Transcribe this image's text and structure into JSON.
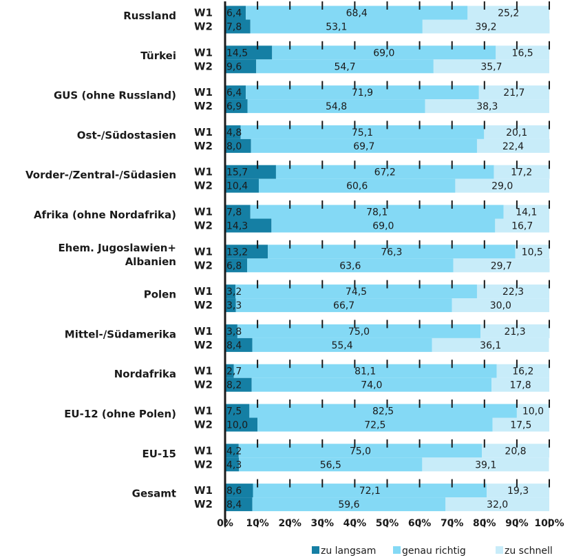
{
  "colors": {
    "slow": "#157fa4",
    "right": "#84d9f5",
    "fast": "#c8ecf9"
  },
  "chart_data": {
    "type": "bar",
    "orientation": "horizontal",
    "stacked": true,
    "xlim": [
      0,
      100
    ],
    "x_ticks": [
      "0%",
      "10%",
      "20%",
      "30%",
      "40%",
      "50%",
      "60%",
      "70%",
      "80%",
      "90%",
      "100%"
    ],
    "series": [
      {
        "name": "zu langsam",
        "color": "#157fa4"
      },
      {
        "name": "genau richtig",
        "color": "#84d9f5"
      },
      {
        "name": "zu schnell",
        "color": "#c8ecf9"
      }
    ],
    "legend_position": "bottom-right",
    "groups": [
      {
        "label": "Russland",
        "rows": [
          {
            "wave": "W1",
            "values": [
              6.4,
              68.4,
              25.2
            ],
            "labels": [
              "6,4",
              "68,4",
              "25,2"
            ]
          },
          {
            "wave": "W2",
            "values": [
              7.8,
              53.1,
              39.2
            ],
            "labels": [
              "7,8",
              "53,1",
              "39,2"
            ]
          }
        ]
      },
      {
        "label": "Türkei",
        "rows": [
          {
            "wave": "W1",
            "values": [
              14.5,
              69.0,
              16.5
            ],
            "labels": [
              "14,5",
              "69,0",
              "16,5"
            ]
          },
          {
            "wave": "W2",
            "values": [
              9.6,
              54.7,
              35.7
            ],
            "labels": [
              "9,6",
              "54,7",
              "35,7"
            ]
          }
        ]
      },
      {
        "label": "GUS (ohne Russland)",
        "rows": [
          {
            "wave": "W1",
            "values": [
              6.4,
              71.9,
              21.7
            ],
            "labels": [
              "6,4",
              "71,9",
              "21,7"
            ]
          },
          {
            "wave": "W2",
            "values": [
              6.9,
              54.8,
              38.3
            ],
            "labels": [
              "6,9",
              "54,8",
              "38,3"
            ]
          }
        ]
      },
      {
        "label": "Ost-/Südostasien",
        "rows": [
          {
            "wave": "W1",
            "values": [
              4.8,
              75.1,
              20.1
            ],
            "labels": [
              "4,8",
              "75,1",
              "20,1"
            ]
          },
          {
            "wave": "W2",
            "values": [
              8.0,
              69.7,
              22.4
            ],
            "labels": [
              "8,0",
              "69,7",
              "22,4"
            ]
          }
        ]
      },
      {
        "label": "Vorder-/Zentral-/Südasien",
        "rows": [
          {
            "wave": "W1",
            "values": [
              15.7,
              67.2,
              17.2
            ],
            "labels": [
              "15,7",
              "67,2",
              "17,2"
            ]
          },
          {
            "wave": "W2",
            "values": [
              10.4,
              60.6,
              29.0
            ],
            "labels": [
              "10,4",
              "60,6",
              "29,0"
            ]
          }
        ]
      },
      {
        "label": "Afrika (ohne Nordafrika)",
        "rows": [
          {
            "wave": "W1",
            "values": [
              7.8,
              78.1,
              14.1
            ],
            "labels": [
              "7,8",
              "78,1",
              "14,1"
            ]
          },
          {
            "wave": "W2",
            "values": [
              14.3,
              69.0,
              16.7
            ],
            "labels": [
              "14,3",
              "69,0",
              "16,7"
            ]
          }
        ]
      },
      {
        "label": "Ehem. Jugoslawien+\nAlbanien",
        "rows": [
          {
            "wave": "W1",
            "values": [
              13.2,
              76.3,
              10.5
            ],
            "labels": [
              "13,2",
              "76,3",
              "10,5"
            ]
          },
          {
            "wave": "W2",
            "values": [
              6.8,
              63.6,
              29.7
            ],
            "labels": [
              "6,8",
              "63,6",
              "29,7"
            ]
          }
        ]
      },
      {
        "label": "Polen",
        "rows": [
          {
            "wave": "W1",
            "values": [
              3.2,
              74.5,
              22.3
            ],
            "labels": [
              "3,2",
              "74,5",
              "22,3"
            ]
          },
          {
            "wave": "W2",
            "values": [
              3.3,
              66.7,
              30.0
            ],
            "labels": [
              "3,3",
              "66,7",
              "30,0"
            ]
          }
        ]
      },
      {
        "label": "Mittel-/Südamerika",
        "rows": [
          {
            "wave": "W1",
            "values": [
              3.8,
              75.0,
              21.3
            ],
            "labels": [
              "3,8",
              "75,0",
              "21,3"
            ]
          },
          {
            "wave": "W2",
            "values": [
              8.4,
              55.4,
              36.1
            ],
            "labels": [
              "8,4",
              "55,4",
              "36,1"
            ]
          }
        ]
      },
      {
        "label": "Nordafrika",
        "rows": [
          {
            "wave": "W1",
            "values": [
              2.7,
              81.1,
              16.2
            ],
            "labels": [
              "2,7",
              "81,1",
              "16,2"
            ]
          },
          {
            "wave": "W2",
            "values": [
              8.2,
              74.0,
              17.8
            ],
            "labels": [
              "8,2",
              "74,0",
              "17,8"
            ]
          }
        ]
      },
      {
        "label": "EU-12 (ohne Polen)",
        "rows": [
          {
            "wave": "W1",
            "values": [
              7.5,
              82.5,
              10.0
            ],
            "labels": [
              "7,5",
              "82,5",
              "10,0"
            ]
          },
          {
            "wave": "W2",
            "values": [
              10.0,
              72.5,
              17.5
            ],
            "labels": [
              "10,0",
              "72,5",
              "17,5"
            ]
          }
        ]
      },
      {
        "label": "EU-15",
        "rows": [
          {
            "wave": "W1",
            "values": [
              4.2,
              75.0,
              20.8
            ],
            "labels": [
              "4,2",
              "75,0",
              "20,8"
            ]
          },
          {
            "wave": "W2",
            "values": [
              4.3,
              56.5,
              39.1
            ],
            "labels": [
              "4,3",
              "56,5",
              "39,1"
            ]
          }
        ]
      },
      {
        "label": "Gesamt",
        "rows": [
          {
            "wave": "W1",
            "values": [
              8.6,
              72.1,
              19.3
            ],
            "labels": [
              "8,6",
              "72,1",
              "19,3"
            ]
          },
          {
            "wave": "W2",
            "values": [
              8.4,
              59.6,
              32.0
            ],
            "labels": [
              "8,4",
              "59,6",
              "32,0"
            ]
          }
        ]
      }
    ]
  }
}
